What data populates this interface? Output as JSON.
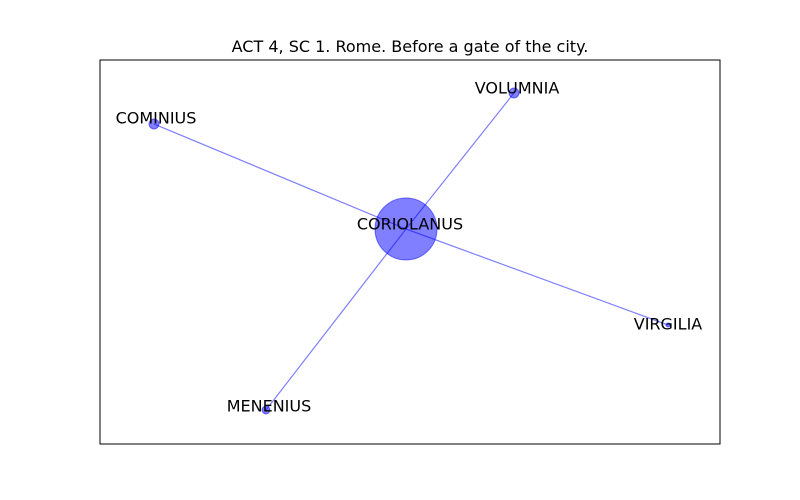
{
  "title": "ACT 4, SC 1. Rome. Before a gate of the city.",
  "colors": {
    "node": "#0000ff",
    "edge": "#0000ff",
    "frame": "#000000"
  },
  "nodes": [
    {
      "id": "CORIOLANUS",
      "label": "CORIOLANUS",
      "weight": 4
    },
    {
      "id": "VOLUMNIA",
      "label": "VOLUMNIA",
      "weight": 1
    },
    {
      "id": "COMINIUS",
      "label": "COMINIUS",
      "weight": 1
    },
    {
      "id": "VIRGILIA",
      "label": "VIRGILIA",
      "weight": 0.3
    },
    {
      "id": "MENENIUS",
      "label": "MENENIUS",
      "weight": 0.6
    }
  ],
  "edges": [
    {
      "source": "CORIOLANUS",
      "target": "VOLUMNIA"
    },
    {
      "source": "CORIOLANUS",
      "target": "COMINIUS"
    },
    {
      "source": "CORIOLANUS",
      "target": "VIRGILIA"
    },
    {
      "source": "CORIOLANUS",
      "target": "MENENIUS"
    }
  ]
}
